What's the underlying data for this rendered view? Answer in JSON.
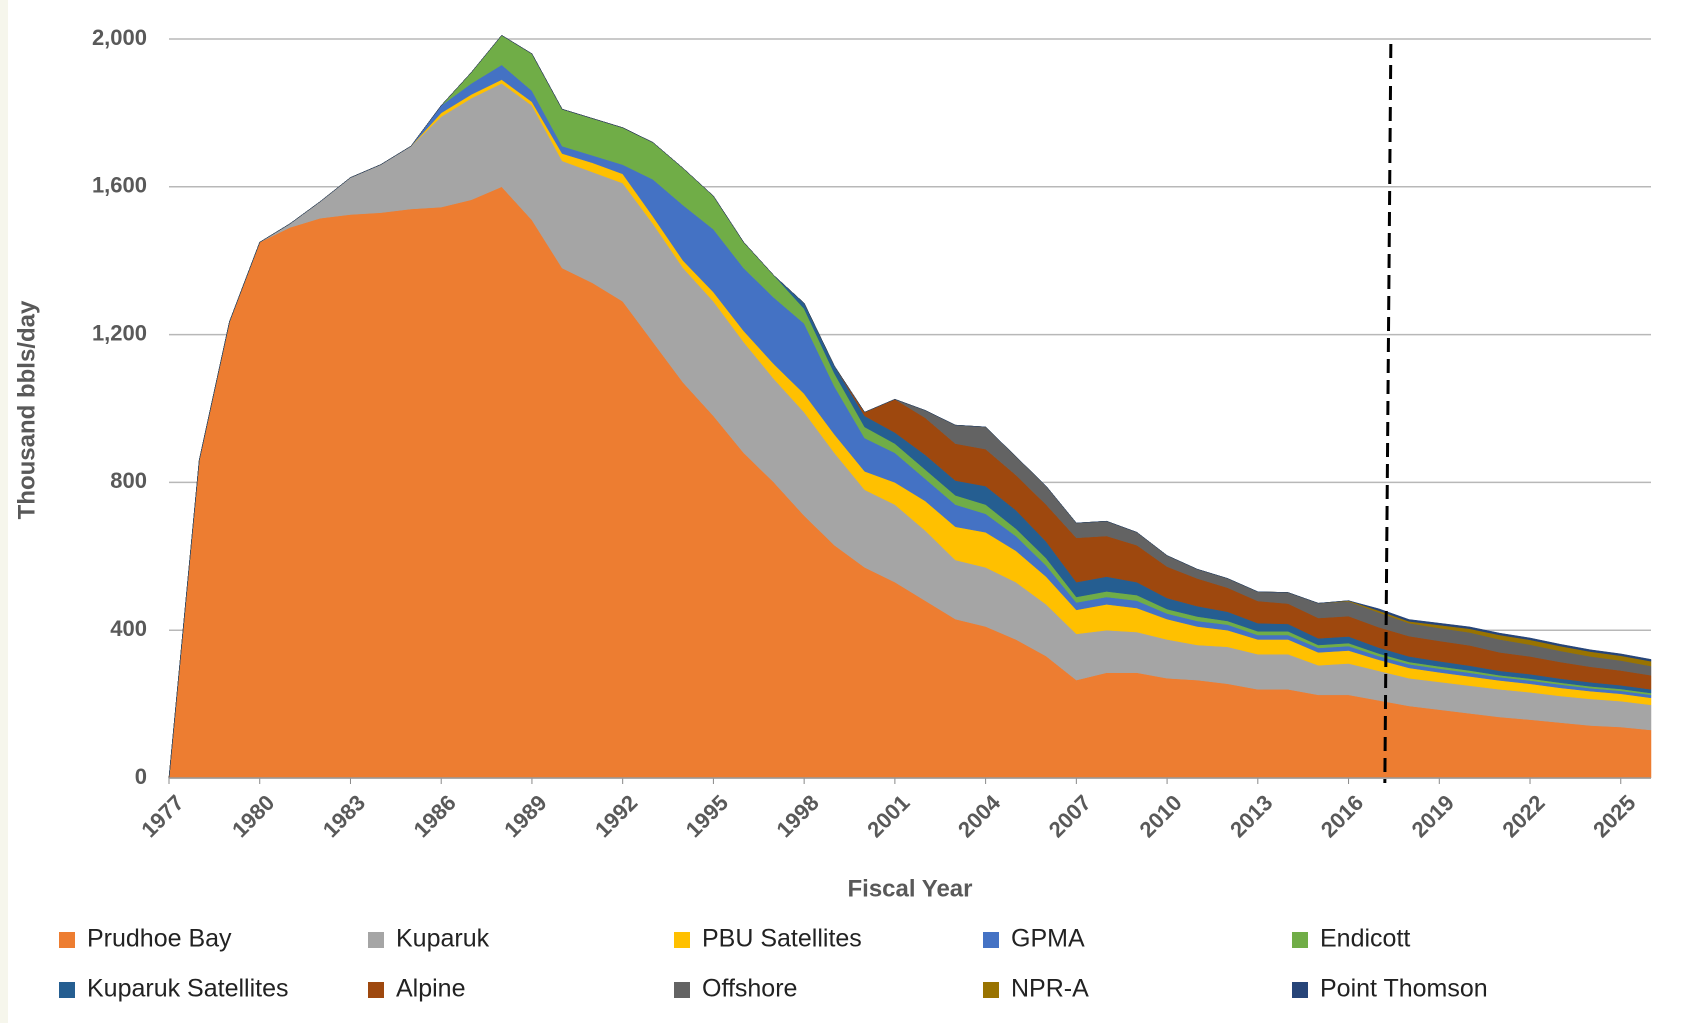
{
  "chart_data": {
    "type": "stacked_area",
    "x_label": "Fiscal Year",
    "y_label": "Thousand bbls/day",
    "x": [
      1977,
      1978,
      1979,
      1980,
      1981,
      1982,
      1983,
      1984,
      1985,
      1986,
      1987,
      1988,
      1989,
      1990,
      1991,
      1992,
      1993,
      1994,
      1995,
      1996,
      1997,
      1998,
      1999,
      2000,
      2001,
      2002,
      2003,
      2004,
      2005,
      2006,
      2007,
      2008,
      2009,
      2010,
      2011,
      2012,
      2013,
      2014,
      2015,
      2016,
      2017,
      2018,
      2019,
      2020,
      2021,
      2022,
      2023,
      2024,
      2025,
      2026
    ],
    "xlim": [
      1977,
      2026
    ],
    "xticks": [
      1977,
      1980,
      1983,
      1986,
      1989,
      1992,
      1995,
      1998,
      2001,
      2004,
      2007,
      2010,
      2013,
      2016,
      2019,
      2022,
      2025
    ],
    "ylim": [
      0,
      2000
    ],
    "yticks": [
      0,
      400,
      800,
      {
        "value": 1200,
        "label": "1,200"
      },
      {
        "value": 1600,
        "label": "1,600"
      },
      {
        "value": 2000,
        "label": "2,000"
      }
    ],
    "grid": true,
    "legend": "bottom",
    "forecast_line_x": 2017.2,
    "series": [
      {
        "name": "Prudhoe Bay",
        "color": "#ED7D31",
        "values": [
          0,
          860,
          1235,
          1450,
          1490,
          1515,
          1525,
          1530,
          1540,
          1545,
          1565,
          1600,
          1510,
          1380,
          1340,
          1290,
          1180,
          1070,
          980,
          880,
          800,
          710,
          630,
          570,
          530,
          480,
          430,
          410,
          375,
          330,
          265,
          285,
          285,
          270,
          265,
          255,
          240,
          240,
          225,
          225,
          210,
          195,
          185,
          175,
          165,
          158,
          150,
          142,
          138,
          130
        ]
      },
      {
        "name": "Kuparuk",
        "color": "#A5A5A5",
        "values": [
          0,
          0,
          0,
          0,
          10,
          45,
          100,
          130,
          170,
          245,
          275,
          280,
          310,
          290,
          300,
          320,
          320,
          310,
          310,
          300,
          280,
          280,
          250,
          210,
          210,
          190,
          160,
          160,
          155,
          140,
          125,
          115,
          110,
          105,
          95,
          100,
          95,
          95,
          80,
          85,
          80,
          75,
          75,
          75,
          75,
          74,
          72,
          72,
          70,
          68
        ]
      },
      {
        "name": "PBU Satellites",
        "color": "#FFC000",
        "values": [
          0,
          0,
          0,
          0,
          0,
          0,
          0,
          0,
          0,
          10,
          10,
          10,
          10,
          20,
          25,
          25,
          20,
          20,
          25,
          30,
          40,
          50,
          50,
          50,
          60,
          80,
          90,
          95,
          85,
          75,
          65,
          70,
          65,
          55,
          50,
          45,
          40,
          40,
          35,
          35,
          30,
          28,
          26,
          25,
          24,
          23,
          22,
          21,
          20,
          19
        ]
      },
      {
        "name": "GPMA",
        "color": "#4472C4",
        "values": [
          0,
          0,
          0,
          0,
          0,
          0,
          0,
          0,
          0,
          20,
          30,
          40,
          30,
          20,
          20,
          25,
          100,
          150,
          170,
          170,
          180,
          190,
          130,
          90,
          80,
          60,
          60,
          50,
          40,
          30,
          20,
          20,
          20,
          15,
          15,
          15,
          12,
          12,
          12,
          12,
          10,
          10,
          10,
          10,
          9,
          9,
          9,
          8,
          8,
          8
        ]
      },
      {
        "name": "Endicott",
        "color": "#70AD47",
        "values": [
          0,
          0,
          0,
          0,
          0,
          0,
          0,
          0,
          0,
          0,
          30,
          80,
          100,
          100,
          100,
          100,
          100,
          100,
          90,
          70,
          60,
          40,
          35,
          30,
          25,
          25,
          25,
          25,
          20,
          20,
          15,
          15,
          15,
          12,
          12,
          10,
          10,
          10,
          8,
          8,
          7,
          6,
          6,
          6,
          5,
          5,
          5,
          5,
          5,
          5
        ]
      },
      {
        "name": "Kuparuk Satellites",
        "color": "#255E91",
        "values": [
          0,
          0,
          0,
          0,
          0,
          0,
          0,
          0,
          0,
          0,
          0,
          0,
          0,
          0,
          0,
          0,
          0,
          0,
          0,
          0,
          0,
          15,
          20,
          30,
          30,
          40,
          40,
          50,
          50,
          45,
          40,
          40,
          35,
          30,
          28,
          25,
          22,
          20,
          18,
          18,
          16,
          15,
          14,
          13,
          12,
          12,
          11,
          11,
          10,
          10
        ]
      },
      {
        "name": "Alpine",
        "color": "#9E480E",
        "values": [
          0,
          0,
          0,
          0,
          0,
          0,
          0,
          0,
          0,
          0,
          0,
          0,
          0,
          0,
          0,
          0,
          0,
          0,
          0,
          0,
          0,
          0,
          0,
          10,
          90,
          100,
          100,
          100,
          95,
          100,
          120,
          110,
          100,
          85,
          75,
          65,
          60,
          55,
          55,
          55,
          55,
          55,
          55,
          55,
          50,
          48,
          45,
          42,
          40,
          38
        ]
      },
      {
        "name": "Offshore",
        "color": "#636363",
        "values": [
          0,
          0,
          0,
          0,
          0,
          0,
          0,
          0,
          0,
          0,
          0,
          0,
          0,
          0,
          0,
          0,
          0,
          0,
          0,
          0,
          0,
          0,
          0,
          0,
          0,
          20,
          50,
          60,
          50,
          50,
          40,
          40,
          35,
          30,
          25,
          25,
          25,
          30,
          40,
          40,
          40,
          35,
          35,
          35,
          35,
          32,
          30,
          28,
          27,
          25
        ]
      },
      {
        "name": "NPR-A",
        "color": "#997300",
        "values": [
          0,
          0,
          0,
          0,
          0,
          0,
          0,
          0,
          0,
          0,
          0,
          0,
          0,
          0,
          0,
          0,
          0,
          0,
          0,
          0,
          0,
          0,
          0,
          0,
          0,
          0,
          0,
          0,
          0,
          0,
          0,
          0,
          0,
          0,
          0,
          0,
          0,
          0,
          0,
          2,
          5,
          5,
          8,
          10,
          12,
          13,
          13,
          13,
          13,
          13
        ]
      },
      {
        "name": "Point Thomson",
        "color": "#264478",
        "values": [
          0,
          0,
          0,
          0,
          0,
          0,
          0,
          0,
          0,
          0,
          0,
          0,
          0,
          0,
          0,
          0,
          0,
          0,
          0,
          0,
          0,
          0,
          0,
          0,
          0,
          0,
          0,
          0,
          0,
          0,
          0,
          0,
          0,
          0,
          0,
          0,
          0,
          0,
          0,
          0,
          5,
          5,
          5,
          5,
          5,
          5,
          5,
          5,
          5,
          5
        ]
      }
    ]
  }
}
